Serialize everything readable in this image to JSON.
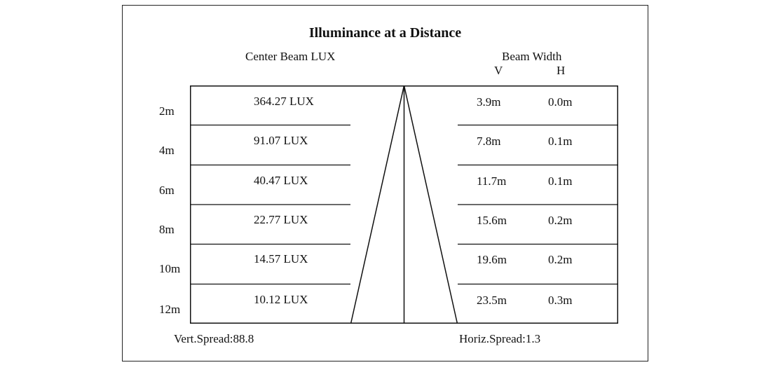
{
  "title": "Illuminance at a Distance",
  "headers": {
    "center_beam": "Center Beam LUX",
    "beam_width": "Beam Width",
    "v": "V",
    "h": "H"
  },
  "rows": [
    {
      "distance": "2m",
      "lux": "364.27 LUX",
      "v": "3.9m",
      "h": "0.0m"
    },
    {
      "distance": "4m",
      "lux": "91.07 LUX",
      "v": "7.8m",
      "h": "0.1m"
    },
    {
      "distance": "6m",
      "lux": "40.47 LUX",
      "v": "11.7m",
      "h": "0.1m"
    },
    {
      "distance": "8m",
      "lux": "22.77 LUX",
      "v": "15.6m",
      "h": "0.2m"
    },
    {
      "distance": "10m",
      "lux": "14.57 LUX",
      "v": "19.6m",
      "h": "0.2m"
    },
    {
      "distance": "12m",
      "lux": "10.12 LUX",
      "v": "23.5m",
      "h": "0.3m"
    }
  ],
  "footer": {
    "vert_spread": "Vert.Spread:88.8",
    "horiz_spread": "Horiz.Spread:1.3"
  }
}
